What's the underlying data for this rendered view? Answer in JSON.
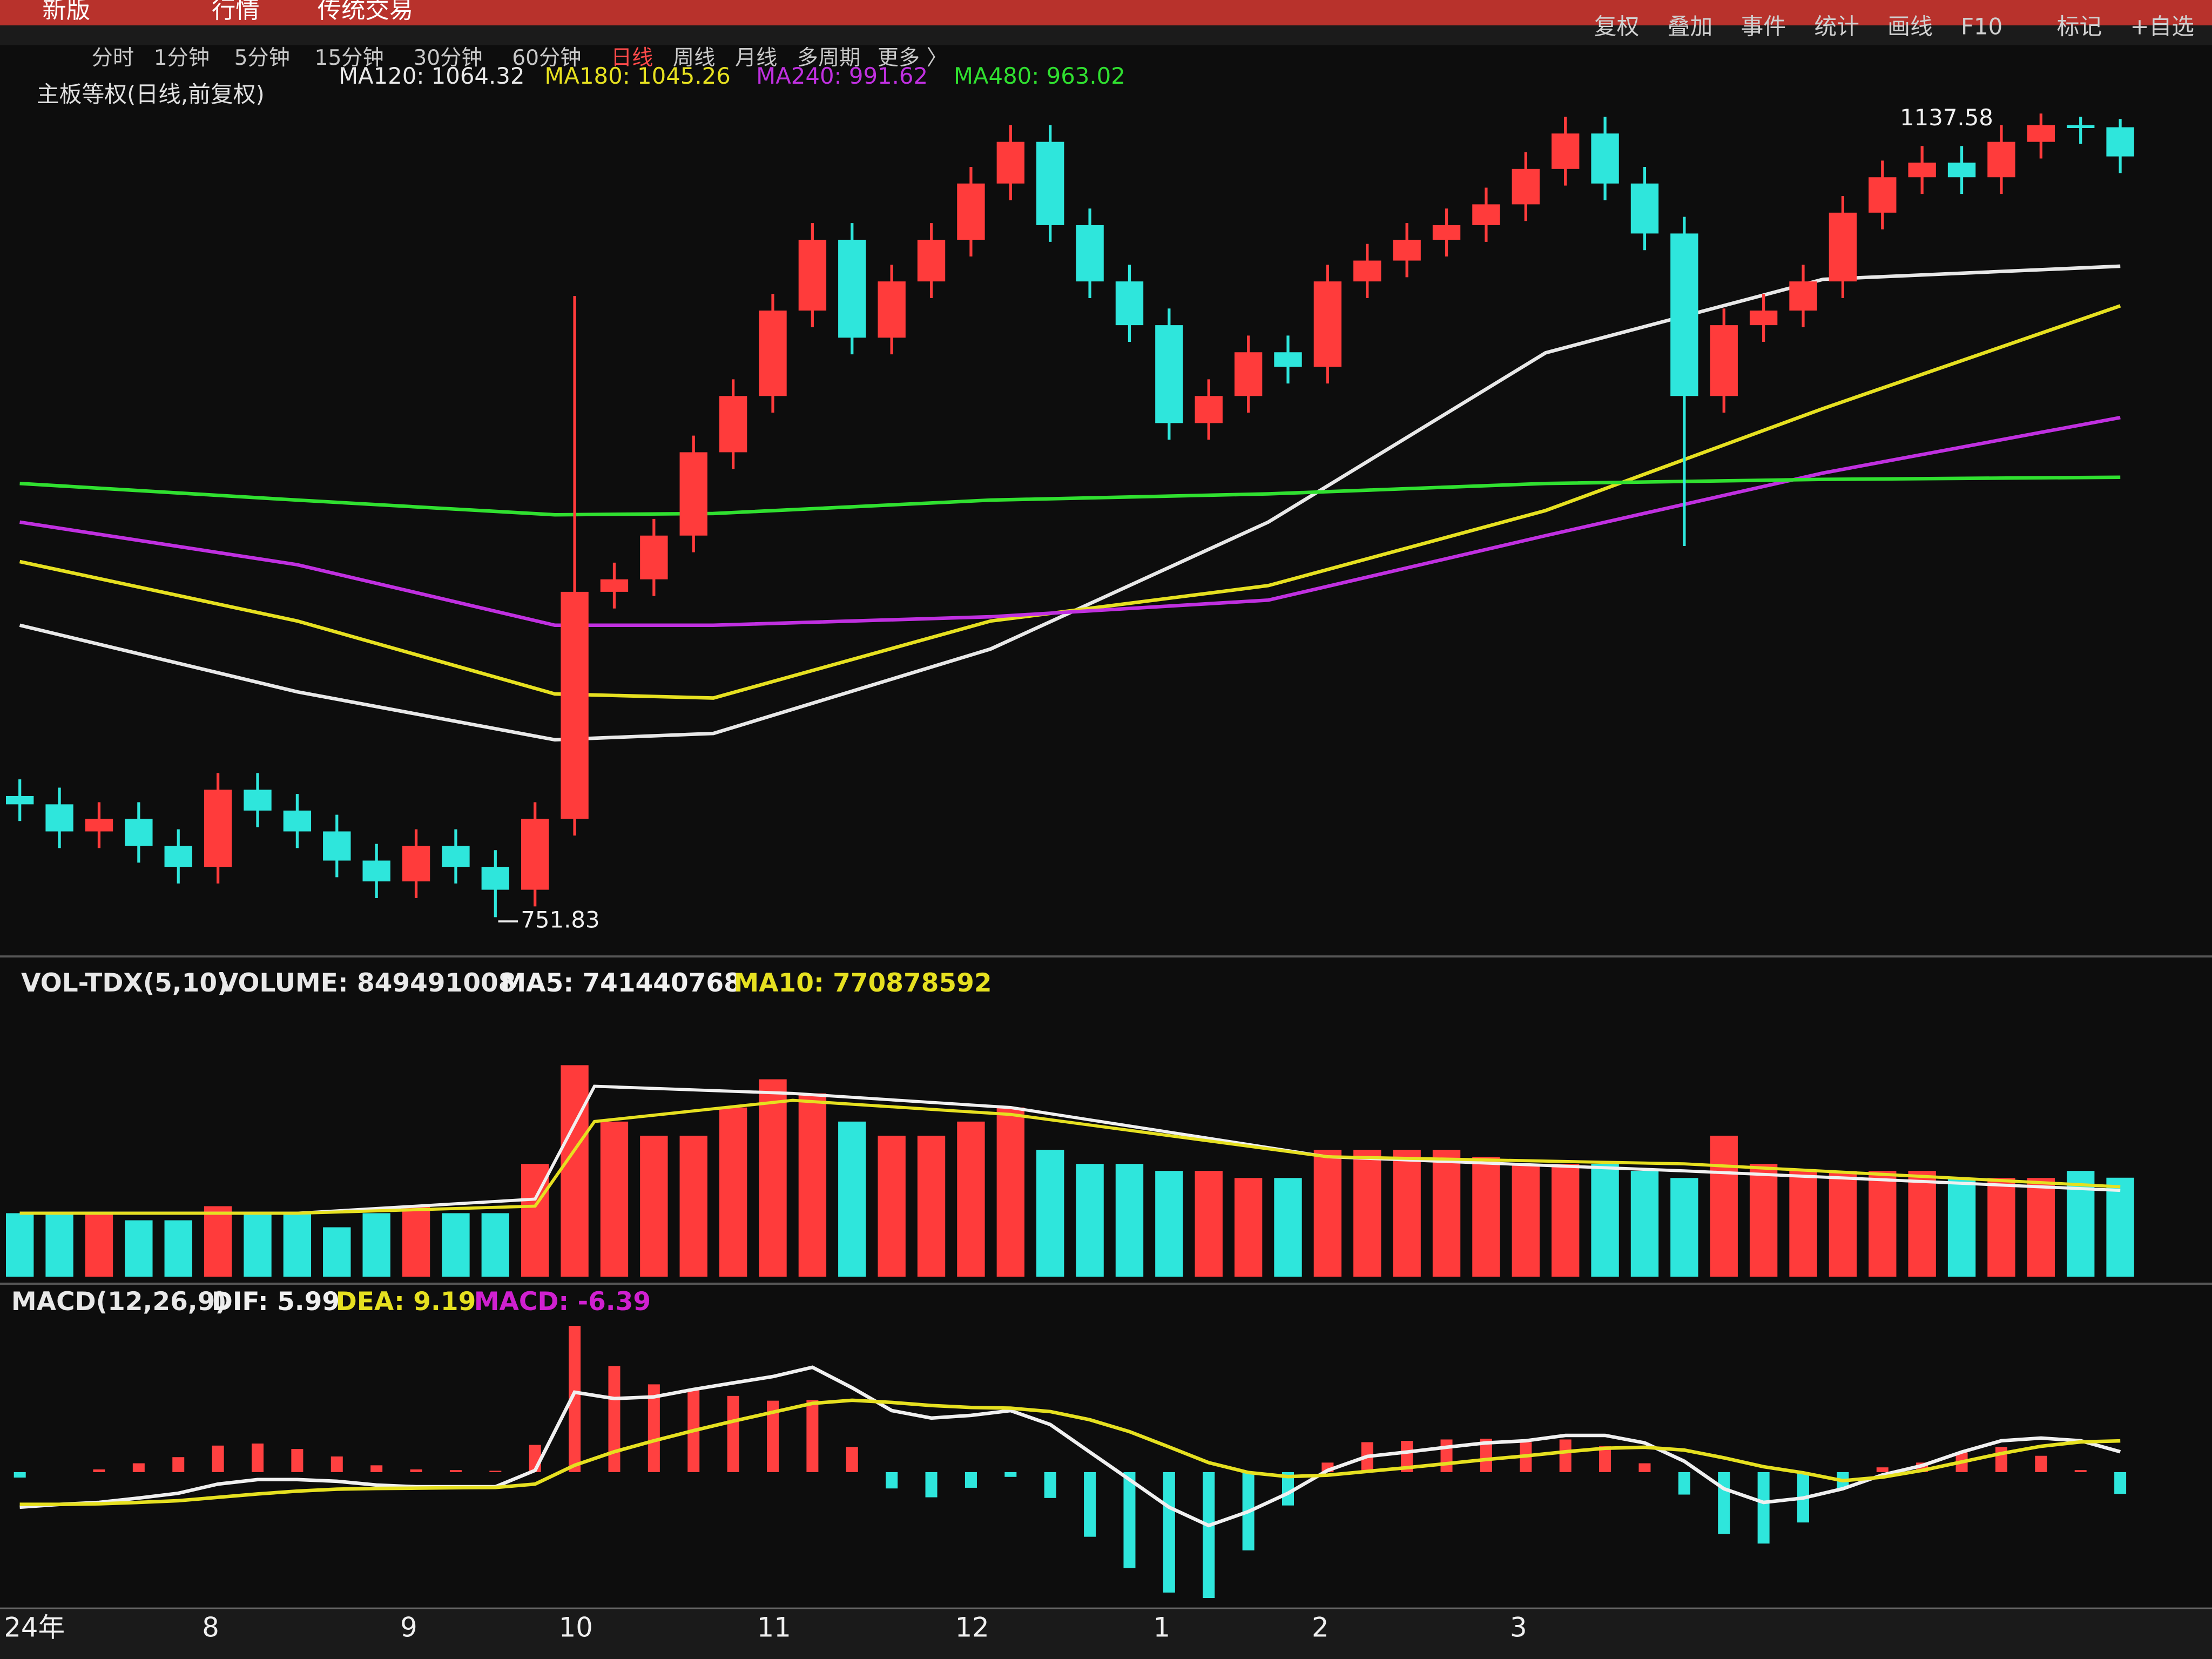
{
  "menu": [
    "新版",
    "行情",
    "传统交易"
  ],
  "toolbar": [
    "复权",
    "叠加",
    "事件",
    "统计",
    "画线",
    "F10",
    "标记",
    "+自选"
  ],
  "periods": [
    "分时",
    "1分钟",
    "5分钟",
    "15分钟",
    "30分钟",
    "60分钟",
    "日线",
    "周线",
    "月线",
    "多周期",
    "更多 〉"
  ],
  "active_period_index": 6,
  "chart_data": [
    {
      "type": "candlestick",
      "title": "主板等权(日线,前复权)",
      "categories": [
        "24年",
        null,
        null,
        null,
        null,
        "8",
        null,
        null,
        null,
        null,
        "9",
        null,
        null,
        null,
        "10",
        null,
        null,
        null,
        null,
        "11",
        null,
        null,
        null,
        null,
        "12",
        null,
        null,
        null,
        null,
        "1",
        null,
        null,
        null,
        "2",
        null,
        null,
        null,
        null,
        "3",
        null,
        null,
        null,
        null,
        null,
        null,
        null,
        null,
        null,
        null,
        null,
        null,
        null,
        null,
        null
      ],
      "open": [
        810,
        806,
        793,
        799,
        786,
        776,
        813,
        803,
        793,
        779,
        769,
        786,
        776,
        765,
        799,
        908,
        914,
        935,
        975,
        1002,
        1043,
        1077,
        1030,
        1057,
        1077,
        1104,
        1124,
        1084,
        1057,
        1036,
        989,
        1002,
        1023,
        1016,
        1057,
        1067,
        1077,
        1084,
        1094,
        1111,
        1128,
        1104,
        1080,
        1002,
        1036,
        1043,
        1057,
        1090,
        1107,
        1114,
        1107,
        1124,
        1132,
        1131
      ],
      "high": [
        818,
        814,
        807,
        807,
        794,
        821,
        821,
        811,
        801,
        787,
        794,
        794,
        784,
        807,
        1050,
        922,
        943,
        983,
        1010,
        1051,
        1085,
        1085,
        1065,
        1085,
        1112,
        1132,
        1132,
        1092,
        1065,
        1044,
        1010,
        1031,
        1031,
        1065,
        1075,
        1085,
        1092,
        1102,
        1119,
        1136,
        1136,
        1112,
        1088,
        1044,
        1051,
        1065,
        1098,
        1115,
        1122,
        1122,
        1132,
        1137.58,
        1136,
        1135
      ],
      "low": [
        798,
        785,
        785,
        778,
        768,
        768,
        795,
        785,
        771,
        761,
        761,
        768,
        751.83,
        757,
        791,
        900,
        906,
        927,
        967,
        994,
        1035,
        1022,
        1022,
        1049,
        1069,
        1096,
        1076,
        1049,
        1028,
        981,
        981,
        994,
        1008,
        1008,
        1049,
        1059,
        1069,
        1076,
        1086,
        1103,
        1096,
        1072,
        930,
        994,
        1028,
        1035,
        1049,
        1082,
        1099,
        1099,
        1099,
        1116,
        1123,
        1109
      ],
      "close": [
        806,
        793,
        799,
        786,
        776,
        813,
        803,
        793,
        779,
        769,
        786,
        776,
        765,
        799,
        908,
        914,
        935,
        975,
        1002,
        1043,
        1077,
        1030,
        1057,
        1077,
        1104,
        1124,
        1084,
        1057,
        1036,
        989,
        1002,
        1023,
        1016,
        1057,
        1067,
        1077,
        1084,
        1094,
        1111,
        1128,
        1104,
        1080,
        1002,
        1036,
        1043,
        1057,
        1090,
        1107,
        1114,
        1107,
        1124,
        1132,
        1131,
        1117
      ],
      "up_color": "#ff3b3b",
      "down_color": "#2ee6dc",
      "ylim": [
        735,
        1165
      ],
      "series": [
        {
          "label": "MA120: 1064.32",
          "color": "#e8e8e8",
          "x": [
            0,
            7,
            13.5,
            17.5,
            24.5,
            31.5,
            38.5,
            45.5,
            53
          ],
          "values": [
            892,
            860,
            837,
            840,
            880.6,
            941.5,
            1022.7,
            1058,
            1064.32
          ]
        },
        {
          "label": "MA180: 1045.26",
          "color": "#e6e020",
          "x": [
            0,
            7,
            13.5,
            17.5,
            24.5,
            31.5,
            38.5,
            45.5,
            53
          ],
          "values": [
            922.5,
            894,
            859,
            857,
            894,
            911,
            947,
            996,
            1045.26
          ]
        },
        {
          "label": "MA240: 991.62",
          "color": "#c030e0",
          "x": [
            0,
            7,
            13.5,
            17.5,
            24.5,
            31.5,
            38.5,
            45.5,
            53
          ],
          "values": [
            941.5,
            921,
            892,
            892,
            896,
            904,
            935,
            965,
            991.62
          ]
        },
        {
          "label": "MA480: 963.02",
          "color": "#30e030",
          "x": [
            0,
            7,
            13.5,
            17.5,
            24.5,
            31.5,
            38.5,
            45.5,
            53
          ],
          "values": [
            960,
            952,
            945,
            945.6,
            952,
            955,
            960,
            962,
            963.02
          ]
        }
      ]
    },
    {
      "type": "bar",
      "title": "VOL-TDX(5,10)",
      "label": "VOLUME: 849491008",
      "values": [
        545000000,
        545000000,
        545000000,
        484000000,
        484000000,
        605000000,
        545000000,
        545000000,
        424000000,
        545000000,
        605000000,
        545000000,
        545000000,
        968000000,
        1815000000,
        1331000000,
        1210000000,
        1210000000,
        1452000000,
        1694000000,
        1573000000,
        1331000000,
        1210000000,
        1210000000,
        1331000000,
        1452000000,
        1089000000,
        968000000,
        968000000,
        908000000,
        908000000,
        847000000,
        847000000,
        1089000000,
        1089000000,
        1089000000,
        1089000000,
        1029000000,
        968000000,
        968000000,
        968000000,
        908000000,
        847000000,
        1210000000,
        968000000,
        908000000,
        908000000,
        908000000,
        908000000,
        847000000,
        847000000,
        847000000,
        908000000,
        849491008
      ],
      "ylim": [
        0,
        2300000000
      ],
      "series": [
        {
          "label": "MA5: 741440768",
          "color": "#f0f0f0",
          "x": [
            0,
            7,
            13,
            14.5,
            19.5,
            25,
            33,
            42,
            53
          ],
          "values": [
            545000000,
            545000000,
            666000000,
            1634000000,
            1573000000,
            1452000000,
            1029000000,
            908000000,
            741440768
          ]
        },
        {
          "label": "MA10: 770878592",
          "color": "#e6e020",
          "x": [
            0,
            7,
            13,
            14.5,
            19.5,
            25,
            33,
            42,
            53
          ],
          "values": [
            545000000,
            545000000,
            605000000,
            1331000000,
            1513000000,
            1392000000,
            1029000000,
            968000000,
            770878592
          ]
        }
      ]
    },
    {
      "type": "macd",
      "title": "MACD(12,26,9)",
      "ylim": [
        -40,
        45
      ],
      "series": [
        {
          "label": "DIF: 5.99",
          "color": "#f0f0f0",
          "values": [
            -10.3,
            -9.5,
            -8.9,
            -7.6,
            -6.2,
            -3.5,
            -2.2,
            -2.2,
            -2.7,
            -3.8,
            -4.3,
            -4.3,
            -4.3,
            0.5,
            23.5,
            21.6,
            22.1,
            24.3,
            26.2,
            28.1,
            30.8,
            24.8,
            18.1,
            15.9,
            16.7,
            18.1,
            14.0,
            5.9,
            -2.2,
            -10.3,
            -15.7,
            -11.6,
            -6.2,
            0.5,
            4.6,
            5.9,
            7.3,
            8.6,
            9.2,
            10.8,
            10.8,
            8.6,
            3.2,
            -4.9,
            -8.9,
            -7.6,
            -4.9,
            -0.8,
            1.9,
            5.9,
            9.2,
            10.0,
            9.2,
            5.99
          ]
        },
        {
          "label": "DEA: 9.19",
          "color": "#e6e020",
          "values": [
            -9.5,
            -9.5,
            -9.3,
            -8.9,
            -8.4,
            -7.4,
            -6.4,
            -5.6,
            -5.0,
            -4.8,
            -4.7,
            -4.6,
            -4.5,
            -3.5,
            2.0,
            6.0,
            9.2,
            12.2,
            15.0,
            17.6,
            20.2,
            21.1,
            20.5,
            19.6,
            19.0,
            18.8,
            17.8,
            15.4,
            11.9,
            7.4,
            2.8,
            -0.1,
            -1.3,
            -0.9,
            0.2,
            1.3,
            2.5,
            3.7,
            4.8,
            6.0,
            7.0,
            7.3,
            6.5,
            4.2,
            1.6,
            -0.2,
            -2.5,
            -1.5,
            0.5,
            3.0,
            5.5,
            7.6,
            8.9,
            9.19
          ]
        },
        {
          "label": "MACD: -6.39",
          "color": "#d020d0",
          "values": [
            -1.6,
            0.0,
            0.8,
            2.6,
            4.4,
            7.8,
            8.4,
            6.8,
            4.6,
            2.0,
            0.8,
            0.6,
            0.4,
            8.0,
            43.0,
            31.2,
            25.8,
            24.2,
            22.4,
            21.0,
            21.2,
            7.4,
            -4.8,
            -7.4,
            -4.6,
            -1.4,
            -7.6,
            -19.0,
            -28.2,
            -35.4,
            -37.0,
            -23.0,
            -9.8,
            2.8,
            8.8,
            9.2,
            9.6,
            9.8,
            8.8,
            9.6,
            7.6,
            2.6,
            -6.6,
            -18.2,
            -21.0,
            -14.8,
            -4.8,
            1.4,
            2.8,
            5.8,
            7.4,
            4.8,
            0.6,
            -6.39
          ]
        }
      ],
      "up_color": "#ff4040",
      "down_color": "#2ee6dc"
    }
  ]
}
